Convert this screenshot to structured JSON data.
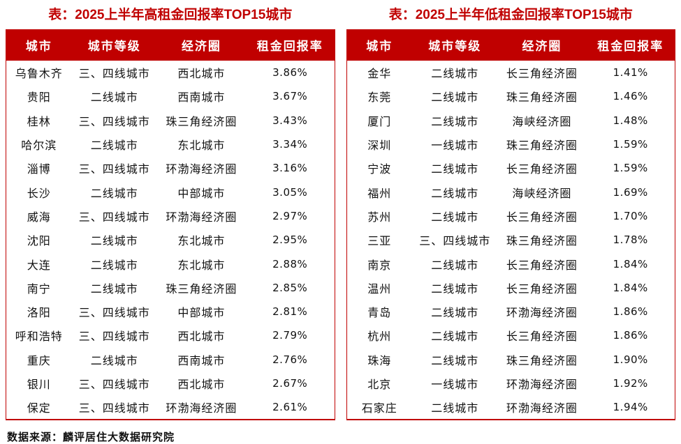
{
  "colors": {
    "accent": "#c00000",
    "header_text": "#ffffff",
    "body_text": "#111111"
  },
  "chart_data": [
    {
      "type": "table",
      "title": "表：2025上半年高租金回报率TOP15城市",
      "columns": [
        "城市",
        "城市等级",
        "经济圈",
        "租金回报率"
      ],
      "rows": [
        [
          "乌鲁木齐",
          "三、四线城市",
          "西北城市",
          "3.86%"
        ],
        [
          "贵阳",
          "二线城市",
          "西南城市",
          "3.67%"
        ],
        [
          "桂林",
          "三、四线城市",
          "珠三角经济圈",
          "3.43%"
        ],
        [
          "哈尔滨",
          "二线城市",
          "东北城市",
          "3.34%"
        ],
        [
          "淄博",
          "三、四线城市",
          "环渤海经济圈",
          "3.16%"
        ],
        [
          "长沙",
          "二线城市",
          "中部城市",
          "3.05%"
        ],
        [
          "威海",
          "三、四线城市",
          "环渤海经济圈",
          "2.97%"
        ],
        [
          "沈阳",
          "二线城市",
          "东北城市",
          "2.95%"
        ],
        [
          "大连",
          "二线城市",
          "东北城市",
          "2.88%"
        ],
        [
          "南宁",
          "二线城市",
          "珠三角经济圈",
          "2.85%"
        ],
        [
          "洛阳",
          "三、四线城市",
          "中部城市",
          "2.81%"
        ],
        [
          "呼和浩特",
          "三、四线城市",
          "西北城市",
          "2.79%"
        ],
        [
          "重庆",
          "二线城市",
          "西南城市",
          "2.76%"
        ],
        [
          "银川",
          "三、四线城市",
          "西北城市",
          "2.67%"
        ],
        [
          "保定",
          "三、四线城市",
          "环渤海经济圈",
          "2.61%"
        ]
      ]
    },
    {
      "type": "table",
      "title": "表：2025上半年低租金回报率TOP15城市",
      "columns": [
        "城市",
        "城市等级",
        "经济圈",
        "租金回报率"
      ],
      "rows": [
        [
          "金华",
          "二线城市",
          "长三角经济圈",
          "1.41%"
        ],
        [
          "东莞",
          "二线城市",
          "珠三角经济圈",
          "1.46%"
        ],
        [
          "厦门",
          "二线城市",
          "海峡经济圈",
          "1.48%"
        ],
        [
          "深圳",
          "一线城市",
          "珠三角经济圈",
          "1.59%"
        ],
        [
          "宁波",
          "二线城市",
          "长三角经济圈",
          "1.59%"
        ],
        [
          "福州",
          "二线城市",
          "海峡经济圈",
          "1.69%"
        ],
        [
          "苏州",
          "二线城市",
          "长三角经济圈",
          "1.70%"
        ],
        [
          "三亚",
          "三、四线城市",
          "珠三角经济圈",
          "1.78%"
        ],
        [
          "南京",
          "二线城市",
          "长三角经济圈",
          "1.84%"
        ],
        [
          "温州",
          "二线城市",
          "长三角经济圈",
          "1.84%"
        ],
        [
          "青岛",
          "二线城市",
          "环渤海经济圈",
          "1.86%"
        ],
        [
          "杭州",
          "二线城市",
          "长三角经济圈",
          "1.86%"
        ],
        [
          "珠海",
          "二线城市",
          "珠三角经济圈",
          "1.90%"
        ],
        [
          "北京",
          "一线城市",
          "环渤海经济圈",
          "1.92%"
        ],
        [
          "石家庄",
          "二线城市",
          "环渤海经济圈",
          "1.94%"
        ]
      ]
    }
  ],
  "footer": {
    "source_note": "数据来源：麟评居住大数据研究院"
  }
}
